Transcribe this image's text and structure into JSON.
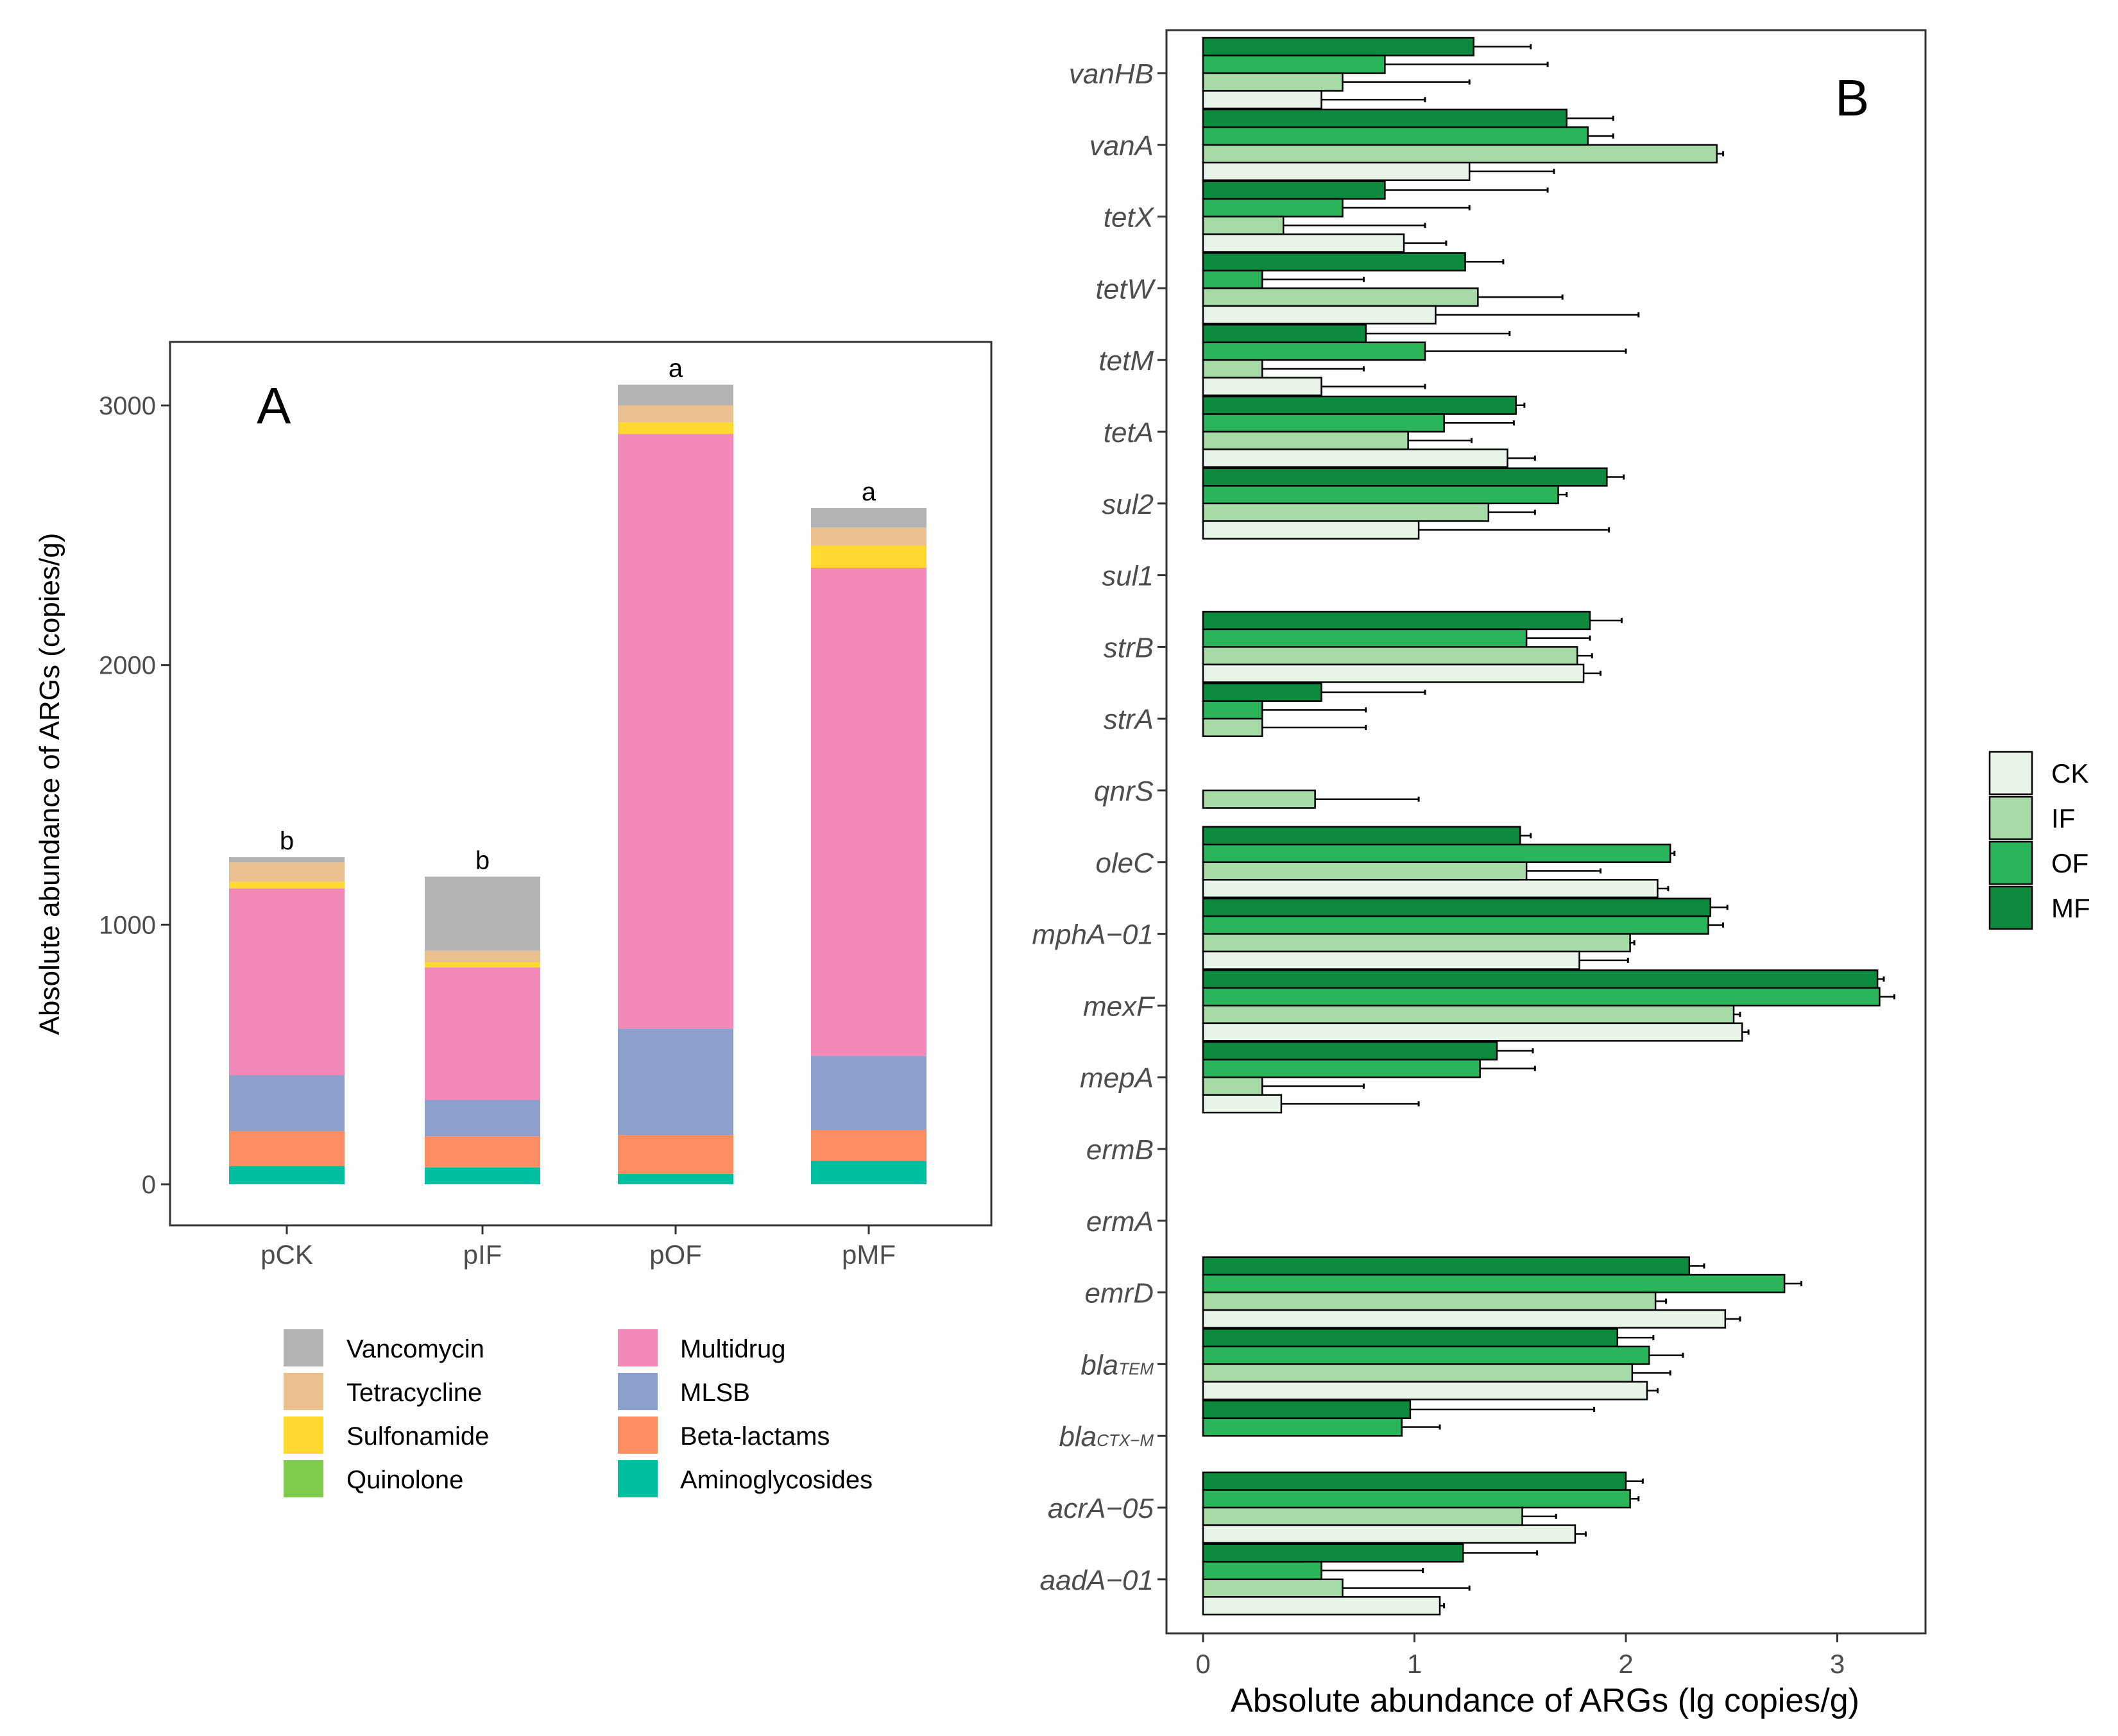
{
  "chart_data": [
    {
      "type": "bar",
      "stacked": true,
      "panel_label": "A",
      "ylabel": "Absolute abundance of ARGs (copies/g)",
      "xlabel": "",
      "ylim": [
        0,
        3300
      ],
      "yticks": [
        "0",
        "1000",
        "2000",
        "3000"
      ],
      "categories": [
        "pCK",
        "pIF",
        "pOF",
        "pMF"
      ],
      "significance": [
        "b",
        "b",
        "a",
        "a"
      ],
      "series": [
        {
          "name": "Aminoglycosides",
          "color": "#00BFA0",
          "values": [
            70,
            65,
            40,
            90
          ]
        },
        {
          "name": "Beta-lactams",
          "color": "#FC8D62",
          "values": [
            135,
            120,
            150,
            120
          ]
        },
        {
          "name": "MLSB",
          "color": "#8DA0CB",
          "values": [
            215,
            140,
            410,
            285
          ]
        },
        {
          "name": "Multidrug",
          "color": "#F289B8",
          "values": [
            720,
            510,
            2290,
            1880
          ]
        },
        {
          "name": "Quinolone",
          "color": "#7FCC4C",
          "values": [
            0,
            0,
            0,
            0
          ]
        },
        {
          "name": "Sulfonamide",
          "color": "#FFD92F",
          "values": [
            25,
            20,
            45,
            85
          ]
        },
        {
          "name": "Tetracycline",
          "color": "#E9C08E",
          "values": [
            75,
            45,
            65,
            70
          ]
        },
        {
          "name": "Vancomycin",
          "color": "#B3B3B3",
          "values": [
            20,
            285,
            80,
            75
          ]
        }
      ],
      "legend": {
        "left_column": [
          "Vancomycin",
          "Tetracycline",
          "Sulfonamide",
          "Quinolone"
        ],
        "right_column": [
          "Multidrug",
          "MLSB",
          "Beta-lactams",
          "Aminoglycosides"
        ]
      }
    },
    {
      "type": "bar",
      "orientation": "horizontal",
      "panel_label": "B",
      "xlabel": "Absolute abundance of ARGs (lg copies/g)",
      "ylabel": "",
      "xlim": [
        -0.18,
        3.45
      ],
      "xticks": [
        "0",
        "1",
        "2",
        "3"
      ],
      "categories": [
        "vanHB",
        "vanA",
        "tetX",
        "tetW",
        "tetM",
        "tetA",
        "sul2",
        "sul1",
        "strB",
        "strA",
        "qnrS",
        "oleC",
        "mphA−01",
        "mexF",
        "mepA",
        "ermB",
        "ermA",
        "emrD",
        "blaTEM",
        "blaCTX−M",
        "acrA−05",
        "aadA−01"
      ],
      "category_subscripts": {
        "blaTEM": [
          "bla",
          "TEM"
        ],
        "blaCTX−M": [
          "bla",
          "CTX−M"
        ]
      },
      "legend": [
        "CK",
        "IF",
        "OF",
        "MF"
      ],
      "series": [
        {
          "name": "MF",
          "color": "#0E8A3F",
          "values": [
            1.28,
            1.72,
            0.86,
            1.24,
            0.77,
            1.48,
            1.91,
            0,
            1.83,
            0.56,
            0,
            1.5,
            2.4,
            3.19,
            1.39,
            0,
            0,
            2.3,
            1.96,
            0.98,
            2.0,
            1.23
          ],
          "errors": [
            0.27,
            0.22,
            0.77,
            0.18,
            0.68,
            0.04,
            0.08,
            0,
            0.15,
            0.49,
            0,
            0.05,
            0.08,
            0.03,
            0.17,
            0,
            0,
            0.07,
            0.17,
            0.87,
            0.08,
            0.35
          ]
        },
        {
          "name": "OF",
          "color": "#2BB55A",
          "values": [
            0.86,
            1.82,
            0.66,
            0.28,
            1.05,
            1.14,
            1.68,
            0,
            1.53,
            0.28,
            0,
            2.21,
            2.39,
            3.2,
            1.31,
            0,
            0,
            2.75,
            2.11,
            0.94,
            2.02,
            0.56
          ],
          "errors": [
            0.77,
            0.12,
            0.6,
            0.48,
            0.95,
            0.33,
            0.04,
            0,
            0.3,
            0.49,
            0,
            0.02,
            0.07,
            0.07,
            0.26,
            0,
            0,
            0.08,
            0.16,
            0.18,
            0.04,
            0.48
          ]
        },
        {
          "name": "IF",
          "color": "#A6DBA8",
          "values": [
            0.66,
            2.43,
            0.38,
            1.3,
            0.28,
            0.97,
            1.35,
            0,
            1.77,
            0.28,
            0.53,
            1.53,
            2.02,
            2.51,
            0.28,
            0,
            0,
            2.14,
            2.03,
            0,
            1.51,
            0.66
          ],
          "errors": [
            0.6,
            0.03,
            0.67,
            0.4,
            0.48,
            0.3,
            0.22,
            0,
            0.07,
            0.49,
            0.49,
            0.35,
            0.02,
            0.03,
            0.48,
            0,
            0,
            0.05,
            0.18,
            0,
            0.16,
            0.6
          ]
        },
        {
          "name": "CK",
          "color": "#E8F5E8",
          "values": [
            0.56,
            1.26,
            0.95,
            1.1,
            0.56,
            1.44,
            1.02,
            0,
            1.8,
            0,
            0,
            2.15,
            1.78,
            2.55,
            0.37,
            0,
            0,
            2.47,
            2.1,
            0,
            1.76,
            1.12
          ],
          "errors": [
            0.49,
            0.4,
            0.2,
            0.96,
            0.49,
            0.13,
            0.9,
            0,
            0.08,
            0,
            0,
            0.05,
            0.23,
            0.03,
            0.65,
            0,
            0,
            0.07,
            0.05,
            0,
            0.05,
            0.02
          ]
        }
      ]
    }
  ]
}
